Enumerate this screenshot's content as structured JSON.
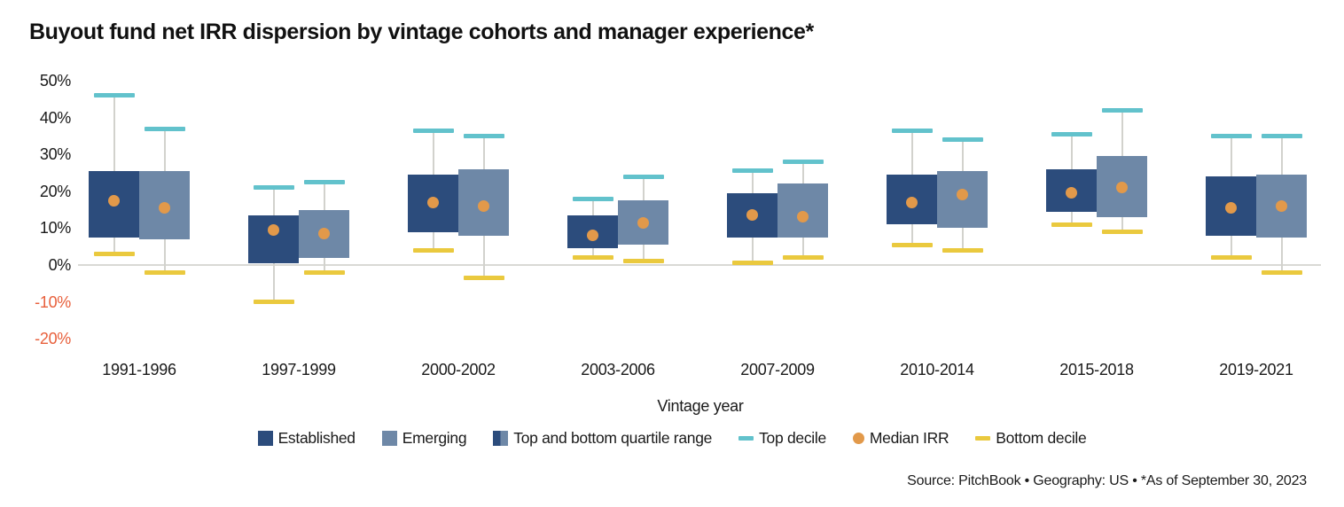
{
  "source_line": "Source: PitchBook • Geography: US • *As of September 30, 2023",
  "colors": {
    "established": "#2c4c7c",
    "emerging": "#6e88a7",
    "top_decile": "#62c2cc",
    "bottom_decile": "#eac93e",
    "median": "#e2994a",
    "negative_tick": "#e8603c",
    "positive_tick": "#1a1a1a",
    "axis_line": "#d9d9d5",
    "whisker": "#d2d2cd",
    "title_text": "#111111"
  },
  "chart_data": {
    "type": "boxplot",
    "title": "Buyout fund net IRR dispersion by vintage cohorts and manager experience*",
    "xlabel": "Vintage year",
    "ylabel": "",
    "unit": "%",
    "ylim": [
      -20,
      50
    ],
    "grid": false,
    "y_ticks": [
      {
        "label": "50%",
        "value": 50
      },
      {
        "label": "40%",
        "value": 40
      },
      {
        "label": "30%",
        "value": 30
      },
      {
        "label": "20%",
        "value": 20
      },
      {
        "label": "10%",
        "value": 10
      },
      {
        "label": "0%",
        "value": 0
      },
      {
        "label": "-10%",
        "value": -10
      },
      {
        "label": "-20%",
        "value": -20
      }
    ],
    "categories": [
      "1991-1996",
      "1997-1999",
      "2000-2002",
      "2003-2006",
      "2007-2009",
      "2010-2014",
      "2015-2018",
      "2019-2021"
    ],
    "series": [
      {
        "name": "Established",
        "top_decile": [
          46,
          21,
          36.5,
          18,
          25.5,
          36.5,
          35.5,
          35
        ],
        "top_quartile": [
          25.5,
          13.5,
          24.5,
          13.5,
          19.5,
          24.5,
          26,
          24
        ],
        "median": [
          17.5,
          9.5,
          17,
          8,
          13.5,
          17,
          19.5,
          15.5
        ],
        "bottom_quartile": [
          7.5,
          0.5,
          9,
          4.5,
          7.5,
          11,
          14.5,
          8
        ],
        "bottom_decile": [
          3,
          -10,
          4,
          2,
          0.5,
          5.5,
          11,
          2
        ]
      },
      {
        "name": "Emerging",
        "top_decile": [
          37,
          22.5,
          35,
          24,
          28,
          34,
          42,
          35
        ],
        "top_quartile": [
          25.5,
          15,
          26,
          17.5,
          22,
          25.5,
          29.5,
          24.5
        ],
        "median": [
          15.5,
          8.5,
          16,
          11.5,
          13,
          19,
          21,
          16
        ],
        "bottom_quartile": [
          7,
          2,
          8,
          5.5,
          7.5,
          10,
          13,
          7.5
        ],
        "bottom_decile": [
          -2,
          -2,
          -3.5,
          1,
          2,
          4,
          9,
          -2
        ]
      }
    ],
    "legend": [
      {
        "label": "Established",
        "swatch": "established"
      },
      {
        "label": "Emerging",
        "swatch": "emerging"
      },
      {
        "label": "Top and bottom quartile range",
        "swatch": "quartile_range"
      },
      {
        "label": "Top decile",
        "swatch": "top_decile"
      },
      {
        "label": "Median IRR",
        "swatch": "median"
      },
      {
        "label": "Bottom decile",
        "swatch": "bottom_decile"
      }
    ],
    "legend_position": "bottom"
  }
}
